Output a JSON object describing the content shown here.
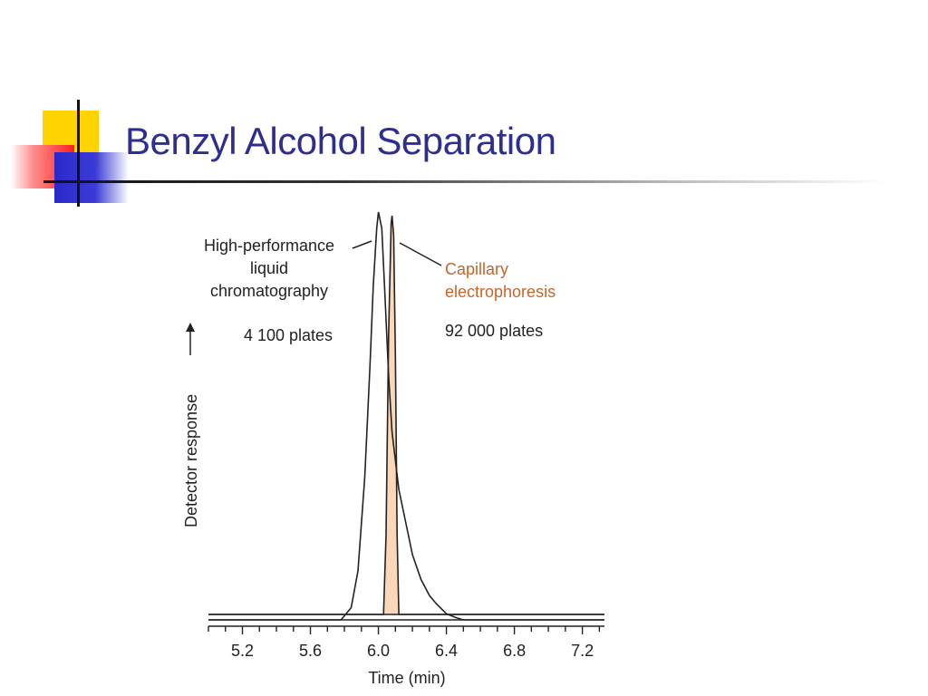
{
  "slide": {
    "title": "Benzyl Alcohol Separation"
  },
  "colors": {
    "title": "#2e2e8f",
    "ce_fill": "#f9d7b8",
    "ce_label": "#c8642a",
    "deco_yellow": "#ffd200",
    "deco_red": "#ff2020",
    "deco_blue": "#2a2acc"
  },
  "chart_data": {
    "type": "line",
    "xlabel": "Time (min)",
    "ylabel": "Detector response",
    "xlim": [
      5.0,
      7.33
    ],
    "x_ticks": [
      5.2,
      5.6,
      6.0,
      6.4,
      6.8,
      7.2
    ],
    "x_tick_labels": [
      "5.2",
      "5.6",
      "6.0",
      "6.4",
      "6.8",
      "7.2"
    ],
    "grid": false,
    "series": [
      {
        "name": "High-performance liquid chromatography",
        "label_lines": [
          "High-performance",
          "liquid",
          "chromatography"
        ],
        "plates_label": "4 100 plates",
        "peak_time": 6.0,
        "points": [
          [
            5.0,
            0.0
          ],
          [
            5.78,
            0.0
          ],
          [
            5.84,
            0.03
          ],
          [
            5.88,
            0.12
          ],
          [
            5.92,
            0.35
          ],
          [
            5.95,
            0.62
          ],
          [
            5.97,
            0.82
          ],
          [
            5.99,
            0.96
          ],
          [
            6.0,
            1.0
          ],
          [
            6.02,
            0.96
          ],
          [
            6.04,
            0.78
          ],
          [
            6.06,
            0.6
          ],
          [
            6.08,
            0.46
          ],
          [
            6.12,
            0.32
          ],
          [
            6.16,
            0.24
          ],
          [
            6.2,
            0.16
          ],
          [
            6.25,
            0.1
          ],
          [
            6.3,
            0.06
          ],
          [
            6.34,
            0.04
          ],
          [
            6.4,
            0.015
          ],
          [
            6.46,
            0.005
          ],
          [
            6.5,
            0.0
          ],
          [
            7.33,
            0.0
          ]
        ]
      },
      {
        "name": "Capillary electrophoresis",
        "label_lines": [
          "Capillary",
          "electrophoresis"
        ],
        "plates_label": "92 000 plates",
        "peak_time": 6.08,
        "points": [
          [
            5.0,
            0.0
          ],
          [
            6.03,
            0.0
          ],
          [
            6.045,
            0.2
          ],
          [
            6.06,
            0.7
          ],
          [
            6.075,
            0.98
          ],
          [
            6.08,
            1.0
          ],
          [
            6.09,
            0.95
          ],
          [
            6.1,
            0.65
          ],
          [
            6.11,
            0.2
          ],
          [
            6.12,
            0.0
          ],
          [
            7.33,
            0.0
          ]
        ]
      }
    ]
  }
}
